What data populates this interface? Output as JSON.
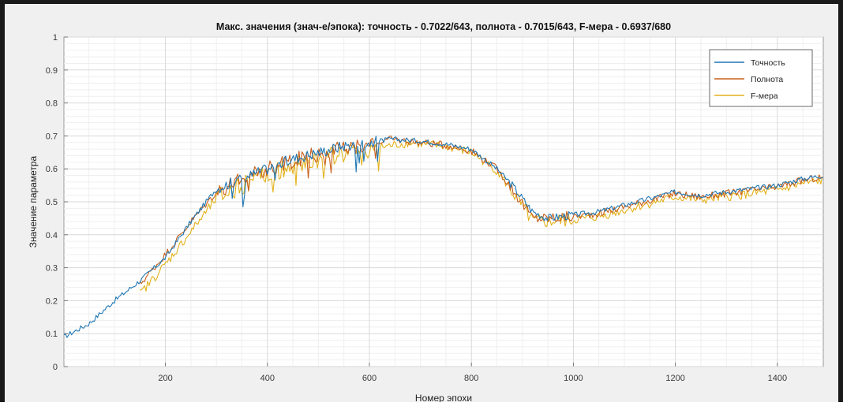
{
  "chart_data": {
    "type": "line",
    "title": "Макс. значения (знач-е/эпока): точность - 0.7022/643, полнота - 0.7015/643, F-мера - 0.6937/680",
    "xlabel": "Номер эпохи",
    "ylabel": "Значение параметра",
    "xlim": [
      1,
      1490
    ],
    "ylim": [
      0,
      1
    ],
    "xticks": [
      200,
      400,
      600,
      800,
      1000,
      1200,
      1400
    ],
    "xtick_labels": [
      "200",
      "400",
      "600",
      "800",
      "1000",
      "1200",
      "1400"
    ],
    "yticks": [
      0,
      0.1,
      0.2,
      0.3,
      0.4,
      0.5,
      0.6,
      0.7,
      0.8,
      0.9,
      1
    ],
    "ytick_labels": [
      "0",
      "0.1",
      "0.2",
      "0.3",
      "0.4",
      "0.5",
      "0.6",
      "0.7",
      "0.8",
      "0.9",
      "1"
    ],
    "grid": true,
    "minor_grid": true,
    "legend_position": "top-right",
    "series": [
      {
        "name": "Точность",
        "color": "#1f77b4",
        "x": [
          1,
          50,
          100,
          150,
          200,
          250,
          300,
          350,
          400,
          450,
          500,
          550,
          600,
          643,
          700,
          750,
          800,
          850,
          880,
          920,
          950,
          1000,
          1050,
          1100,
          1150,
          1200,
          1250,
          1300,
          1350,
          1400,
          1450,
          1490
        ],
        "y": [
          0.09,
          0.13,
          0.2,
          0.26,
          0.33,
          0.44,
          0.54,
          0.57,
          0.6,
          0.63,
          0.65,
          0.67,
          0.68,
          0.69,
          0.685,
          0.675,
          0.66,
          0.6,
          0.55,
          0.47,
          0.45,
          0.46,
          0.47,
          0.49,
          0.51,
          0.53,
          0.52,
          0.53,
          0.54,
          0.55,
          0.57,
          0.58
        ]
      },
      {
        "name": "Полнота",
        "color": "#c8601a",
        "x": [
          150,
          200,
          250,
          300,
          350,
          400,
          450,
          500,
          550,
          600,
          643,
          700,
          750,
          800,
          850,
          880,
          920,
          950,
          1000,
          1050,
          1100,
          1150,
          1200,
          1250,
          1300,
          1350,
          1400,
          1450,
          1490
        ],
        "y": [
          0.25,
          0.34,
          0.44,
          0.53,
          0.57,
          0.6,
          0.625,
          0.645,
          0.665,
          0.675,
          0.69,
          0.68,
          0.672,
          0.655,
          0.6,
          0.54,
          0.45,
          0.45,
          0.455,
          0.465,
          0.485,
          0.505,
          0.525,
          0.515,
          0.525,
          0.535,
          0.545,
          0.565,
          0.575
        ]
      },
      {
        "name": "F-мера",
        "color": "#e3b21c",
        "x": [
          150,
          200,
          250,
          300,
          350,
          400,
          450,
          500,
          550,
          600,
          680,
          700,
          750,
          800,
          850,
          880,
          920,
          950,
          1000,
          1050,
          1100,
          1150,
          1200,
          1250,
          1300,
          1350,
          1400,
          1450,
          1490
        ],
        "y": [
          0.22,
          0.31,
          0.41,
          0.51,
          0.55,
          0.585,
          0.605,
          0.625,
          0.645,
          0.66,
          0.68,
          0.675,
          0.668,
          0.65,
          0.595,
          0.53,
          0.44,
          0.44,
          0.445,
          0.455,
          0.475,
          0.495,
          0.515,
          0.505,
          0.515,
          0.525,
          0.535,
          0.555,
          0.565
        ]
      }
    ]
  }
}
